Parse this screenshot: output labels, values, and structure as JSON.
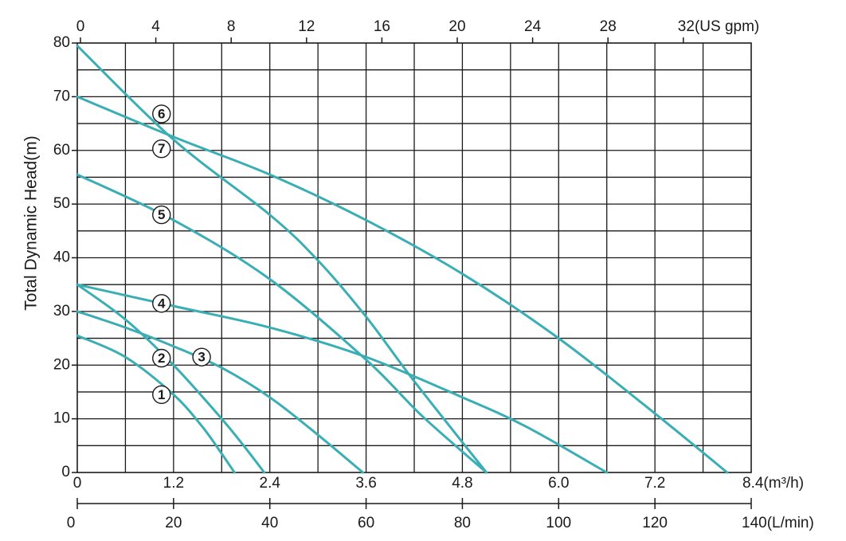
{
  "chart_data": {
    "type": "line",
    "ylabel": "Total Dynamic Head(m)",
    "ylim": [
      0,
      80
    ],
    "xlim": [
      0,
      8.4
    ],
    "grid": true,
    "y_ticks": [
      "0",
      "10",
      "20",
      "30",
      "40",
      "50",
      "60",
      "70",
      "80"
    ],
    "x_ticks_m3h": [
      "0",
      "1.2",
      "2.4",
      "3.6",
      "4.8",
      "6.0",
      "7.2",
      "8.4"
    ],
    "x_unit_m3h": "(m³/h)",
    "x_ticks_lmin": [
      "0",
      "20",
      "40",
      "60",
      "80",
      "100",
      "120",
      "140"
    ],
    "x_unit_lmin": "(L/min)",
    "x_ticks_usgpm": [
      "0",
      "4",
      "8",
      "12",
      "16",
      "20",
      "24",
      "28",
      "32"
    ],
    "x_unit_usgpm": "(US gpm)",
    "line_color": "#3aaeb5",
    "series": [
      {
        "label": "1",
        "label_at": [
          1.05,
          14.5
        ],
        "x": [
          0,
          0.6,
          1.2,
          1.56,
          1.8,
          1.96
        ],
        "y": [
          25.5,
          21.5,
          14.5,
          8.5,
          3.5,
          0
        ]
      },
      {
        "label": "2",
        "label_at": [
          1.05,
          21.3
        ],
        "x": [
          0,
          0.6,
          1.2,
          1.8,
          2.1,
          2.33
        ],
        "y": [
          35,
          28.5,
          20,
          10,
          4.5,
          0
        ]
      },
      {
        "label": "3",
        "label_at": [
          1.55,
          21.5
        ],
        "x": [
          0,
          0.6,
          1.2,
          1.8,
          2.4,
          3.0,
          3.56
        ],
        "y": [
          30,
          27,
          23.5,
          19.5,
          14,
          7,
          0
        ]
      },
      {
        "label": "4",
        "label_at": [
          1.05,
          31.5
        ],
        "x": [
          0,
          1.2,
          2.4,
          3.6,
          4.8,
          5.6,
          6.6
        ],
        "y": [
          35,
          31,
          27,
          21.5,
          14,
          8.5,
          0
        ]
      },
      {
        "label": "5",
        "label_at": [
          1.05,
          48
        ],
        "x": [
          0,
          1.2,
          2.4,
          3.6,
          4.3,
          5.1
        ],
        "y": [
          55.5,
          47,
          36,
          21,
          10.5,
          0
        ]
      },
      {
        "label": "6",
        "label_at": [
          1.05,
          66.8
        ],
        "x": [
          0,
          1.2,
          2.4,
          3.0,
          3.6,
          4.2,
          5.1
        ],
        "y": [
          79.5,
          62,
          48,
          39.5,
          29,
          17,
          0
        ]
      },
      {
        "label": "7",
        "label_at": [
          1.05,
          60.3
        ],
        "x": [
          0,
          1.2,
          2.4,
          3.6,
          4.8,
          6.0,
          7.2,
          8.1
        ],
        "y": [
          70,
          62.5,
          55.5,
          47,
          37,
          25,
          11,
          0
        ]
      }
    ]
  }
}
